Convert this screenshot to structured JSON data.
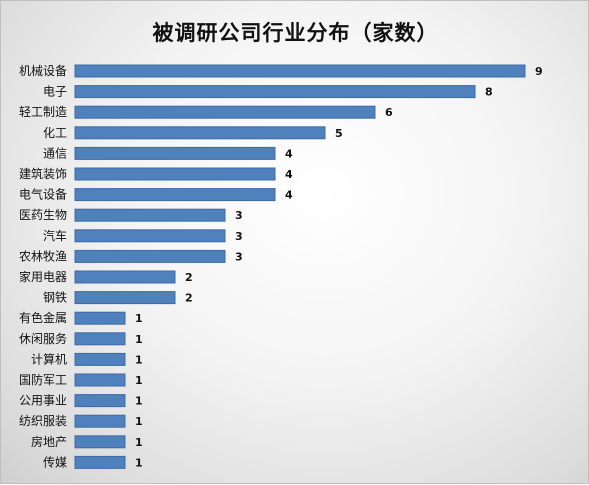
{
  "chart_data": {
    "type": "bar",
    "orientation": "horizontal",
    "title": "被调研公司行业分布（家数）",
    "categories": [
      "机械设备",
      "电子",
      "轻工制造",
      "化工",
      "通信",
      "建筑装饰",
      "电气设备",
      "医药生物",
      "汽车",
      "农林牧渔",
      "家用电器",
      "钢铁",
      "有色金属",
      "休闲服务",
      "计算机",
      "国防军工",
      "公用事业",
      "纺织服装",
      "房地产",
      "传媒"
    ],
    "values": [
      9,
      8,
      6,
      5,
      4,
      4,
      4,
      3,
      3,
      3,
      2,
      2,
      1,
      1,
      1,
      1,
      1,
      1,
      1,
      1
    ],
    "xlim": [
      0,
      9
    ],
    "grid": false,
    "legend": "none",
    "bar_color": "#4f81bd"
  }
}
